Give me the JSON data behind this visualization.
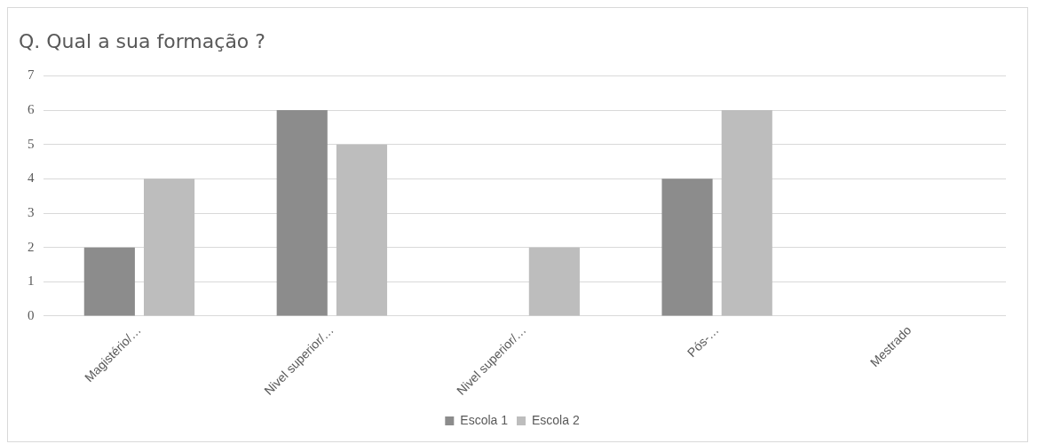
{
  "chart_data": {
    "type": "bar",
    "title": "Q. Qual a sua formação ?",
    "categories": [
      "Magistério/…",
      "Nivel superior/…",
      "Nivel superior/…",
      "Pós-…",
      "Mestrado"
    ],
    "series": [
      {
        "name": "Escola 1",
        "color": "#8c8c8c",
        "values": [
          2,
          6,
          0,
          4,
          0
        ]
      },
      {
        "name": "Escola 2",
        "color": "#bdbdbd",
        "values": [
          4,
          5,
          2,
          6,
          0
        ]
      }
    ],
    "ylim": [
      0,
      7
    ],
    "yticks": [
      0,
      1,
      2,
      3,
      4,
      5,
      6,
      7
    ],
    "grid": "y",
    "legend": "bottom"
  }
}
